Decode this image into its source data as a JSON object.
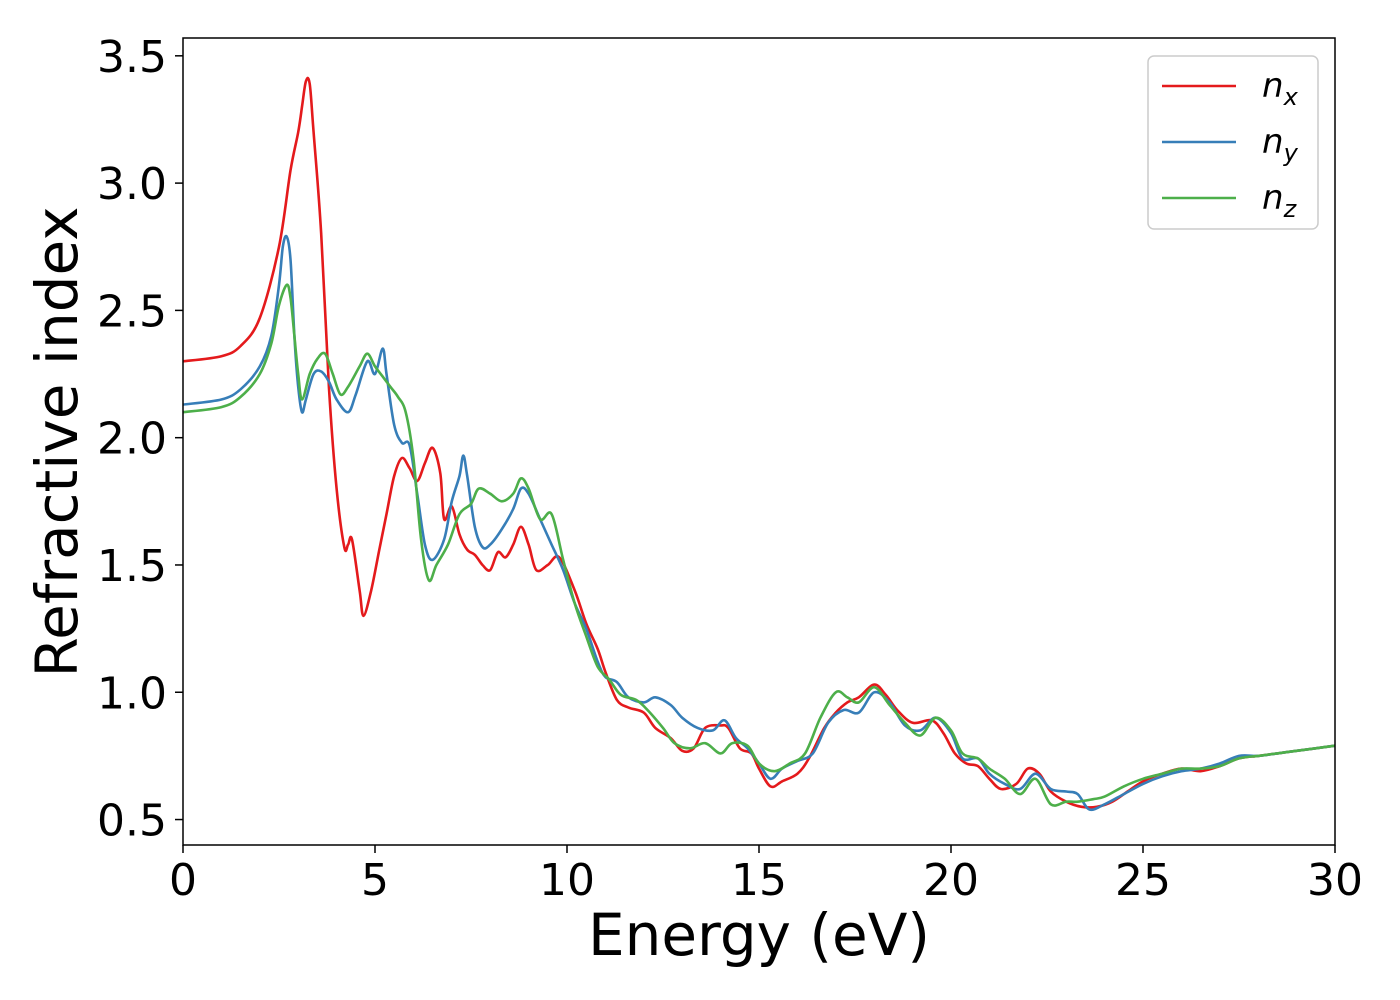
{
  "chart_data": {
    "type": "line",
    "xlabel": "Energy (eV)",
    "ylabel": "Refractive index",
    "xlim": [
      0,
      30
    ],
    "ylim": [
      0.4,
      3.57
    ],
    "xticks": [
      "0",
      "5",
      "10",
      "15",
      "20",
      "25",
      "30"
    ],
    "yticks": [
      "0.5",
      "1.0",
      "1.5",
      "2.0",
      "2.5",
      "3.0",
      "3.5"
    ],
    "grid": false,
    "legend_position": "top-right",
    "series": [
      {
        "name": "n",
        "subscript": "x",
        "color": "#e41a1c",
        "points": [
          [
            0,
            2.3
          ],
          [
            1,
            2.32
          ],
          [
            1.5,
            2.36
          ],
          [
            2,
            2.47
          ],
          [
            2.5,
            2.75
          ],
          [
            2.8,
            3.05
          ],
          [
            3.0,
            3.2
          ],
          [
            3.1,
            3.3
          ],
          [
            3.2,
            3.4
          ],
          [
            3.3,
            3.39
          ],
          [
            3.4,
            3.2
          ],
          [
            3.6,
            2.8
          ],
          [
            3.8,
            2.2
          ],
          [
            4.0,
            1.8
          ],
          [
            4.2,
            1.57
          ],
          [
            4.3,
            1.58
          ],
          [
            4.4,
            1.6
          ],
          [
            4.6,
            1.4
          ],
          [
            4.7,
            1.3
          ],
          [
            4.9,
            1.4
          ],
          [
            5.1,
            1.55
          ],
          [
            5.3,
            1.7
          ],
          [
            5.5,
            1.85
          ],
          [
            5.7,
            1.92
          ],
          [
            5.9,
            1.88
          ],
          [
            6.1,
            1.83
          ],
          [
            6.3,
            1.9
          ],
          [
            6.5,
            1.96
          ],
          [
            6.7,
            1.86
          ],
          [
            6.8,
            1.68
          ],
          [
            7.0,
            1.73
          ],
          [
            7.2,
            1.62
          ],
          [
            7.4,
            1.56
          ],
          [
            7.6,
            1.54
          ],
          [
            7.8,
            1.5
          ],
          [
            8.0,
            1.48
          ],
          [
            8.2,
            1.55
          ],
          [
            8.4,
            1.53
          ],
          [
            8.6,
            1.58
          ],
          [
            8.8,
            1.65
          ],
          [
            9.0,
            1.58
          ],
          [
            9.2,
            1.48
          ],
          [
            9.5,
            1.5
          ],
          [
            9.8,
            1.53
          ],
          [
            10.2,
            1.4
          ],
          [
            10.5,
            1.27
          ],
          [
            10.8,
            1.17
          ],
          [
            11.0,
            1.08
          ],
          [
            11.3,
            0.97
          ],
          [
            11.6,
            0.94
          ],
          [
            12.0,
            0.92
          ],
          [
            12.3,
            0.86
          ],
          [
            12.7,
            0.82
          ],
          [
            13.0,
            0.77
          ],
          [
            13.3,
            0.78
          ],
          [
            13.6,
            0.86
          ],
          [
            14.0,
            0.87
          ],
          [
            14.2,
            0.86
          ],
          [
            14.5,
            0.78
          ],
          [
            14.8,
            0.76
          ],
          [
            15.0,
            0.7
          ],
          [
            15.3,
            0.63
          ],
          [
            15.6,
            0.65
          ],
          [
            16.0,
            0.68
          ],
          [
            16.3,
            0.74
          ],
          [
            16.7,
            0.86
          ],
          [
            17.0,
            0.92
          ],
          [
            17.3,
            0.96
          ],
          [
            17.6,
            0.98
          ],
          [
            18.0,
            1.03
          ],
          [
            18.3,
            0.99
          ],
          [
            18.6,
            0.93
          ],
          [
            19.0,
            0.88
          ],
          [
            19.5,
            0.89
          ],
          [
            19.8,
            0.84
          ],
          [
            20.1,
            0.76
          ],
          [
            20.4,
            0.72
          ],
          [
            20.7,
            0.71
          ],
          [
            21.0,
            0.66
          ],
          [
            21.3,
            0.62
          ],
          [
            21.7,
            0.64
          ],
          [
            22.0,
            0.7
          ],
          [
            22.3,
            0.68
          ],
          [
            22.6,
            0.61
          ],
          [
            23.0,
            0.57
          ],
          [
            23.4,
            0.55
          ],
          [
            23.8,
            0.55
          ],
          [
            24.2,
            0.57
          ],
          [
            24.6,
            0.61
          ],
          [
            25.0,
            0.65
          ],
          [
            25.5,
            0.68
          ],
          [
            26.0,
            0.7
          ],
          [
            26.5,
            0.69
          ],
          [
            27.0,
            0.71
          ],
          [
            27.5,
            0.74
          ],
          [
            28.0,
            0.75
          ],
          [
            28.5,
            0.76
          ],
          [
            29.0,
            0.77
          ],
          [
            29.5,
            0.78
          ],
          [
            30,
            0.79
          ]
        ]
      },
      {
        "name": "n",
        "subscript": "y",
        "color": "#377eb8",
        "points": [
          [
            0,
            2.13
          ],
          [
            1,
            2.15
          ],
          [
            1.5,
            2.19
          ],
          [
            2,
            2.28
          ],
          [
            2.3,
            2.4
          ],
          [
            2.5,
            2.6
          ],
          [
            2.6,
            2.75
          ],
          [
            2.7,
            2.79
          ],
          [
            2.8,
            2.7
          ],
          [
            2.9,
            2.4
          ],
          [
            3.0,
            2.2
          ],
          [
            3.1,
            2.1
          ],
          [
            3.2,
            2.15
          ],
          [
            3.4,
            2.25
          ],
          [
            3.6,
            2.26
          ],
          [
            3.8,
            2.22
          ],
          [
            4.0,
            2.15
          ],
          [
            4.3,
            2.1
          ],
          [
            4.5,
            2.17
          ],
          [
            4.8,
            2.3
          ],
          [
            5.0,
            2.25
          ],
          [
            5.2,
            2.35
          ],
          [
            5.3,
            2.25
          ],
          [
            5.5,
            2.05
          ],
          [
            5.7,
            1.98
          ],
          [
            5.9,
            1.97
          ],
          [
            6.1,
            1.78
          ],
          [
            6.3,
            1.58
          ],
          [
            6.5,
            1.52
          ],
          [
            6.8,
            1.6
          ],
          [
            7.0,
            1.75
          ],
          [
            7.2,
            1.85
          ],
          [
            7.3,
            1.93
          ],
          [
            7.4,
            1.85
          ],
          [
            7.6,
            1.65
          ],
          [
            7.8,
            1.57
          ],
          [
            8.0,
            1.58
          ],
          [
            8.3,
            1.64
          ],
          [
            8.6,
            1.72
          ],
          [
            8.8,
            1.8
          ],
          [
            9.0,
            1.78
          ],
          [
            9.3,
            1.68
          ],
          [
            9.6,
            1.58
          ],
          [
            9.9,
            1.48
          ],
          [
            10.2,
            1.35
          ],
          [
            10.5,
            1.25
          ],
          [
            10.8,
            1.12
          ],
          [
            11.0,
            1.06
          ],
          [
            11.3,
            1.04
          ],
          [
            11.6,
            0.98
          ],
          [
            12.0,
            0.96
          ],
          [
            12.3,
            0.98
          ],
          [
            12.7,
            0.95
          ],
          [
            13.0,
            0.9
          ],
          [
            13.4,
            0.86
          ],
          [
            13.8,
            0.85
          ],
          [
            14.1,
            0.89
          ],
          [
            14.4,
            0.82
          ],
          [
            14.7,
            0.78
          ],
          [
            15.0,
            0.72
          ],
          [
            15.3,
            0.66
          ],
          [
            15.6,
            0.7
          ],
          [
            16.0,
            0.73
          ],
          [
            16.4,
            0.76
          ],
          [
            16.8,
            0.88
          ],
          [
            17.2,
            0.93
          ],
          [
            17.6,
            0.92
          ],
          [
            18.0,
            1.0
          ],
          [
            18.4,
            0.96
          ],
          [
            18.8,
            0.87
          ],
          [
            19.2,
            0.85
          ],
          [
            19.6,
            0.9
          ],
          [
            20.0,
            0.84
          ],
          [
            20.3,
            0.74
          ],
          [
            20.7,
            0.74
          ],
          [
            21.0,
            0.68
          ],
          [
            21.4,
            0.64
          ],
          [
            21.8,
            0.62
          ],
          [
            22.2,
            0.68
          ],
          [
            22.6,
            0.62
          ],
          [
            23.0,
            0.61
          ],
          [
            23.3,
            0.6
          ],
          [
            23.6,
            0.54
          ],
          [
            24.0,
            0.56
          ],
          [
            24.5,
            0.6
          ],
          [
            25.0,
            0.64
          ],
          [
            25.5,
            0.67
          ],
          [
            26.0,
            0.69
          ],
          [
            26.5,
            0.7
          ],
          [
            27.0,
            0.72
          ],
          [
            27.5,
            0.75
          ],
          [
            28.0,
            0.75
          ],
          [
            28.5,
            0.76
          ],
          [
            29.0,
            0.77
          ],
          [
            29.5,
            0.78
          ],
          [
            30,
            0.79
          ]
        ]
      },
      {
        "name": "n",
        "subscript": "z",
        "color": "#4daf4a",
        "points": [
          [
            0,
            2.1
          ],
          [
            1,
            2.12
          ],
          [
            1.5,
            2.16
          ],
          [
            2,
            2.25
          ],
          [
            2.3,
            2.37
          ],
          [
            2.5,
            2.52
          ],
          [
            2.7,
            2.6
          ],
          [
            2.8,
            2.55
          ],
          [
            2.9,
            2.4
          ],
          [
            3.0,
            2.25
          ],
          [
            3.1,
            2.15
          ],
          [
            3.3,
            2.25
          ],
          [
            3.5,
            2.31
          ],
          [
            3.7,
            2.33
          ],
          [
            3.9,
            2.25
          ],
          [
            4.1,
            2.17
          ],
          [
            4.3,
            2.2
          ],
          [
            4.6,
            2.28
          ],
          [
            4.8,
            2.33
          ],
          [
            5.0,
            2.28
          ],
          [
            5.2,
            2.24
          ],
          [
            5.4,
            2.2
          ],
          [
            5.6,
            2.16
          ],
          [
            5.8,
            2.1
          ],
          [
            6.0,
            1.92
          ],
          [
            6.2,
            1.6
          ],
          [
            6.4,
            1.44
          ],
          [
            6.6,
            1.5
          ],
          [
            6.9,
            1.58
          ],
          [
            7.2,
            1.7
          ],
          [
            7.5,
            1.74
          ],
          [
            7.7,
            1.8
          ],
          [
            8.0,
            1.78
          ],
          [
            8.3,
            1.75
          ],
          [
            8.6,
            1.78
          ],
          [
            8.8,
            1.84
          ],
          [
            9.0,
            1.8
          ],
          [
            9.3,
            1.68
          ],
          [
            9.6,
            1.7
          ],
          [
            9.9,
            1.52
          ],
          [
            10.2,
            1.35
          ],
          [
            10.5,
            1.22
          ],
          [
            10.8,
            1.1
          ],
          [
            11.1,
            1.05
          ],
          [
            11.4,
            0.99
          ],
          [
            11.8,
            0.97
          ],
          [
            12.1,
            0.93
          ],
          [
            12.5,
            0.86
          ],
          [
            12.8,
            0.8
          ],
          [
            13.2,
            0.78
          ],
          [
            13.6,
            0.8
          ],
          [
            14.0,
            0.76
          ],
          [
            14.3,
            0.8
          ],
          [
            14.7,
            0.79
          ],
          [
            15.0,
            0.72
          ],
          [
            15.4,
            0.69
          ],
          [
            15.8,
            0.72
          ],
          [
            16.2,
            0.76
          ],
          [
            16.6,
            0.9
          ],
          [
            17.0,
            1.0
          ],
          [
            17.3,
            0.98
          ],
          [
            17.6,
            0.96
          ],
          [
            18.0,
            1.02
          ],
          [
            18.4,
            0.95
          ],
          [
            18.8,
            0.88
          ],
          [
            19.2,
            0.83
          ],
          [
            19.6,
            0.9
          ],
          [
            20.0,
            0.85
          ],
          [
            20.3,
            0.76
          ],
          [
            20.7,
            0.74
          ],
          [
            21.0,
            0.7
          ],
          [
            21.4,
            0.66
          ],
          [
            21.8,
            0.6
          ],
          [
            22.2,
            0.66
          ],
          [
            22.6,
            0.56
          ],
          [
            23.0,
            0.57
          ],
          [
            23.3,
            0.57
          ],
          [
            23.7,
            0.58
          ],
          [
            24.0,
            0.59
          ],
          [
            24.5,
            0.63
          ],
          [
            25.0,
            0.66
          ],
          [
            25.5,
            0.68
          ],
          [
            26.0,
            0.7
          ],
          [
            26.5,
            0.7
          ],
          [
            27.0,
            0.71
          ],
          [
            27.5,
            0.74
          ],
          [
            28.0,
            0.75
          ],
          [
            28.5,
            0.76
          ],
          [
            29.0,
            0.77
          ],
          [
            29.5,
            0.78
          ],
          [
            30,
            0.79
          ]
        ]
      }
    ]
  }
}
